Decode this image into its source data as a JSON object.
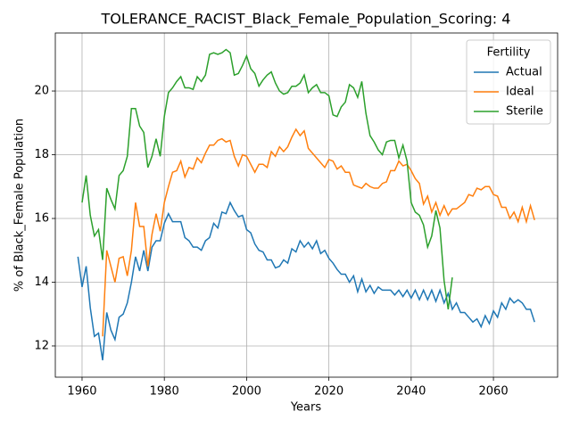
{
  "chart_data": {
    "type": "line",
    "title": "TOLERANCE_RACIST_Black_Female_Population_Scoring: 4",
    "xlabel": "Years",
    "ylabel": "% of Black_Female Population",
    "legend_title": "Fertility",
    "legend": "upper right",
    "grid": true,
    "xlim": [
      1953.5,
      2075.6
    ],
    "ylim": [
      11.02,
      21.82
    ],
    "xticks": [
      1960,
      1980,
      2000,
      2020,
      2040,
      2060
    ],
    "yticks": [
      12,
      14,
      16,
      18,
      20
    ],
    "x": [
      1959,
      1960,
      1961,
      1962,
      1963,
      1964,
      1965,
      1966,
      1967,
      1968,
      1969,
      1970,
      1971,
      1972,
      1973,
      1974,
      1975,
      1976,
      1977,
      1978,
      1979,
      1980,
      1981,
      1982,
      1983,
      1984,
      1985,
      1986,
      1987,
      1988,
      1989,
      1990,
      1991,
      1992,
      1993,
      1994,
      1995,
      1996,
      1997,
      1998,
      1999,
      2000,
      2001,
      2002,
      2003,
      2004,
      2005,
      2006,
      2007,
      2008,
      2009,
      2010,
      2011,
      2012,
      2013,
      2014,
      2015,
      2016,
      2017,
      2018,
      2019,
      2020,
      2021,
      2022,
      2023,
      2024,
      2025,
      2026,
      2027,
      2028,
      2029,
      2030,
      2031,
      2032,
      2033,
      2034,
      2035,
      2036,
      2037,
      2038,
      2039,
      2040,
      2041,
      2042,
      2043,
      2044,
      2045,
      2046,
      2047,
      2048,
      2049,
      2050,
      2051,
      2052,
      2053,
      2054,
      2055,
      2056,
      2057,
      2058,
      2059,
      2060,
      2061,
      2062,
      2063,
      2064,
      2065,
      2066,
      2067,
      2068,
      2069,
      2070
    ],
    "series": [
      {
        "name": "Actual",
        "color": "#1f77b4",
        "values": [
          14.8,
          13.85,
          14.5,
          13.2,
          12.3,
          12.4,
          11.55,
          13.05,
          12.5,
          12.2,
          12.9,
          13.0,
          13.35,
          14.0,
          14.8,
          14.35,
          15.0,
          14.35,
          15.1,
          15.3,
          15.3,
          15.85,
          16.15,
          15.9,
          15.9,
          15.9,
          15.4,
          15.3,
          15.1,
          15.1,
          15.0,
          15.3,
          15.4,
          15.85,
          15.7,
          16.2,
          16.15,
          16.5,
          16.25,
          16.05,
          16.1,
          15.65,
          15.55,
          15.2,
          15.0,
          14.95,
          14.7,
          14.7,
          14.45,
          14.5,
          14.7,
          14.6,
          15.05,
          14.95,
          15.3,
          15.1,
          15.25,
          15.05,
          15.3,
          14.9,
          15.0,
          14.75,
          14.6,
          14.4,
          14.25,
          14.25,
          14.0,
          14.2,
          13.7,
          14.1,
          13.7,
          13.9,
          13.65,
          13.85,
          13.75,
          13.75,
          13.75,
          13.6,
          13.75,
          13.55,
          13.75,
          13.5,
          13.75,
          13.45,
          13.75,
          13.45,
          13.75,
          13.4,
          13.75,
          13.35,
          13.65,
          13.15,
          13.35,
          13.05,
          13.05,
          12.9,
          12.75,
          12.85,
          12.6,
          12.95,
          12.7,
          13.1,
          12.9,
          13.35,
          13.15,
          13.5,
          13.35,
          13.45,
          13.35,
          13.15,
          13.15,
          12.75
        ]
      },
      {
        "name": "Ideal",
        "color": "#ff7f0e",
        "values": [
          null,
          null,
          null,
          null,
          null,
          null,
          12.3,
          15.0,
          14.5,
          14.0,
          14.75,
          14.8,
          14.2,
          15.0,
          16.5,
          15.75,
          15.75,
          14.5,
          15.5,
          16.15,
          15.6,
          16.5,
          17.0,
          17.45,
          17.5,
          17.8,
          17.3,
          17.6,
          17.55,
          17.9,
          17.75,
          18.05,
          18.3,
          18.3,
          18.45,
          18.5,
          18.4,
          18.45,
          17.95,
          17.65,
          18.0,
          17.95,
          17.7,
          17.45,
          17.7,
          17.7,
          17.6,
          18.1,
          17.95,
          18.25,
          18.1,
          18.25,
          18.55,
          18.8,
          18.6,
          18.75,
          18.2,
          18.05,
          17.9,
          17.75,
          17.6,
          17.85,
          17.8,
          17.55,
          17.65,
          17.45,
          17.45,
          17.05,
          17.0,
          16.95,
          17.1,
          17.0,
          16.95,
          16.95,
          17.1,
          17.15,
          17.5,
          17.5,
          17.8,
          17.65,
          17.7,
          17.5,
          17.25,
          17.1,
          16.45,
          16.7,
          16.2,
          16.5,
          16.1,
          16.4,
          16.1,
          16.3,
          16.3,
          16.4,
          16.5,
          16.75,
          16.7,
          16.95,
          16.9,
          17.0,
          17.0,
          16.75,
          16.7,
          16.35,
          16.35,
          16.0,
          16.2,
          15.9,
          16.35,
          15.9,
          16.4,
          15.95
        ]
      },
      {
        "name": "Sterile",
        "color": "#2ca02c",
        "values": [
          null,
          16.5,
          17.35,
          16.1,
          15.45,
          15.65,
          14.7,
          16.95,
          16.6,
          16.3,
          17.35,
          17.5,
          17.95,
          19.45,
          19.45,
          18.9,
          18.7,
          17.6,
          17.95,
          18.5,
          17.95,
          19.2,
          19.95,
          20.1,
          20.3,
          20.45,
          20.1,
          20.1,
          20.05,
          20.45,
          20.3,
          20.5,
          21.15,
          21.2,
          21.15,
          21.2,
          21.3,
          21.2,
          20.5,
          20.55,
          20.8,
          21.1,
          20.7,
          20.55,
          20.15,
          20.35,
          20.5,
          20.6,
          20.25,
          20.0,
          19.9,
          19.95,
          20.15,
          20.15,
          20.25,
          20.5,
          19.95,
          20.1,
          20.2,
          19.95,
          19.95,
          19.85,
          19.25,
          19.2,
          19.5,
          19.65,
          20.2,
          20.1,
          19.8,
          20.3,
          19.3,
          18.6,
          18.4,
          18.15,
          18.0,
          18.4,
          18.45,
          18.45,
          17.9,
          18.3,
          17.8,
          16.5,
          16.2,
          16.1,
          15.8,
          15.1,
          15.45,
          16.25,
          15.7,
          14.05,
          13.15,
          14.15,
          null,
          null,
          null,
          null,
          null,
          null,
          null,
          null,
          null,
          null,
          null,
          null,
          null,
          null,
          null,
          null,
          null,
          null,
          null,
          null
        ]
      }
    ]
  }
}
